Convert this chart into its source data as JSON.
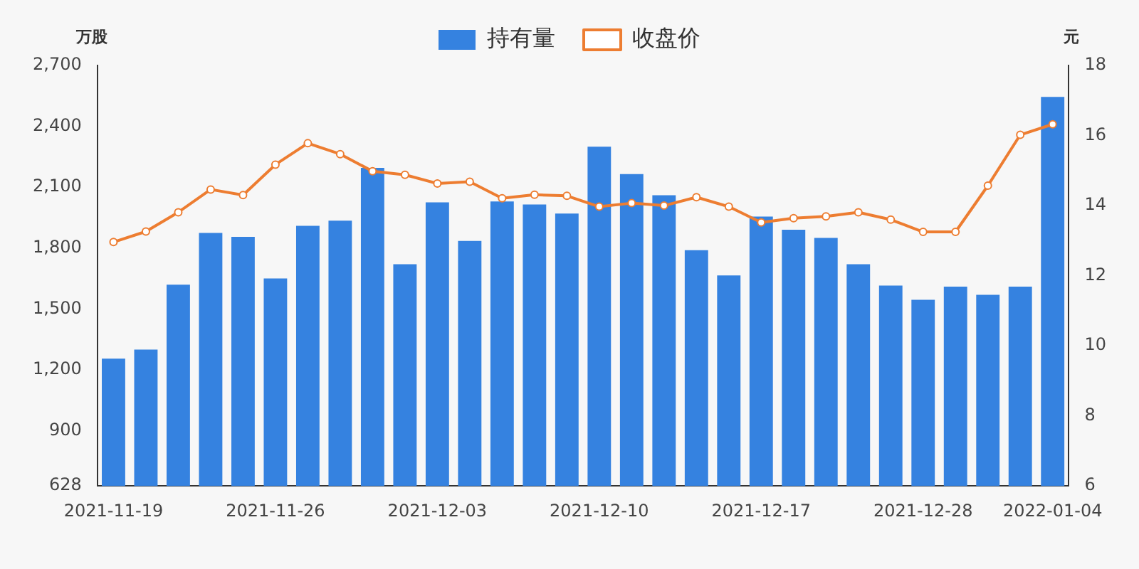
{
  "chart_data": {
    "type": "bar",
    "categories": [
      "2021-11-19",
      null,
      null,
      null,
      null,
      "2021-11-26",
      null,
      null,
      null,
      null,
      "2021-12-03",
      null,
      null,
      null,
      null,
      "2021-12-10",
      null,
      null,
      null,
      null,
      "2021-12-17",
      null,
      null,
      null,
      null,
      "2021-12-28",
      null,
      null,
      null,
      "2022-01-04"
    ],
    "series": [
      {
        "name": "持有量",
        "color": "#3582e0",
        "values": [
          1255,
          1300,
          1620,
          1875,
          1855,
          1650,
          1910,
          1935,
          2195,
          1720,
          2025,
          1835,
          2030,
          2015,
          1970,
          2300,
          2165,
          2060,
          1790,
          1665,
          1955,
          1890,
          1850,
          1720,
          1615,
          1545,
          1610,
          1570,
          1610,
          2545
        ]
      },
      {
        "name": "收盘价",
        "type": "line",
        "axis": "y2",
        "color": "#ed7d31",
        "marker": "circle",
        "values": [
          12.96,
          13.26,
          13.81,
          14.46,
          14.3,
          15.17,
          15.78,
          15.47,
          14.98,
          14.88,
          14.63,
          14.68,
          14.21,
          14.31,
          14.28,
          13.97,
          14.07,
          14.0,
          14.24,
          13.97,
          13.52,
          13.64,
          13.69,
          13.81,
          13.6,
          13.25,
          13.25,
          14.57,
          16.02,
          16.32
        ]
      }
    ],
    "ylabel": "万股",
    "y2label": "元",
    "ylim": [
      628,
      2700
    ],
    "yticks": [
      628,
      900,
      {
        "value": 1200,
        "label": "1,200"
      },
      {
        "value": 1500,
        "label": "1,500"
      },
      {
        "value": 1800,
        "label": "1,800"
      },
      {
        "value": 2100,
        "label": "2,100"
      },
      {
        "value": 2400,
        "label": "2,400"
      },
      {
        "value": 2700,
        "label": "2,700"
      }
    ],
    "y2lim": [
      6,
      18
    ],
    "y2ticks": [
      6,
      8,
      10,
      12,
      14,
      16,
      18
    ],
    "grid": false,
    "legend": "top"
  }
}
